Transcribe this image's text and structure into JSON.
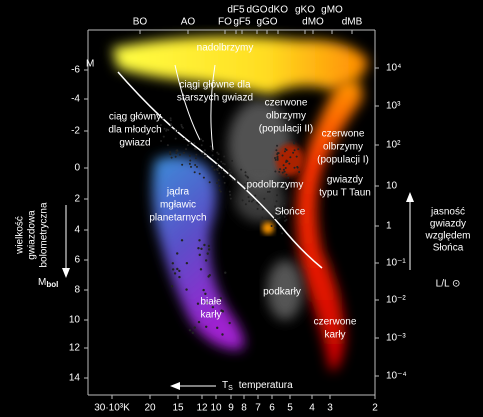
{
  "axes": {
    "left": {
      "unit": "M",
      "ticks": [
        "-6",
        "-4",
        "-2",
        "0",
        "2",
        "4",
        "6",
        "8",
        "10",
        "12",
        "14"
      ],
      "label": [
        "wielkość",
        "gwiazdowa",
        "bolometryczna"
      ],
      "symbol": "M",
      "subscript": "bol"
    },
    "right": {
      "ticks": [
        "10⁴",
        "10³",
        "10²",
        "10",
        "1",
        "10⁻¹",
        "10⁻²",
        "10⁻³",
        "10⁻⁴"
      ],
      "label": [
        "jasność",
        "gwiazdy",
        "względem",
        "Słońca"
      ],
      "symbol": "L/L ⊙"
    },
    "bottom": {
      "ticks": [
        "30·10³K",
        "20",
        "15",
        "12",
        "10",
        "9",
        "8",
        "7",
        "6",
        "5",
        "4",
        "3",
        "2"
      ],
      "symbol": "T",
      "subscript": "S",
      "label": "temperatura"
    },
    "top": {
      "ticks": [
        "BO",
        "AO",
        "FO",
        "dF5",
        "gF5",
        "dGO",
        "gGO",
        "dKO",
        "gKO",
        "dMO",
        "gMO",
        "dMB"
      ]
    }
  },
  "regions": [
    {
      "label": [
        "nadolbrzymy"
      ]
    },
    {
      "label": [
        "ciągi główne dla",
        "starszych gwiazd"
      ]
    },
    {
      "label": [
        "ciąg główny",
        "dla młodych",
        "gwiazd"
      ]
    },
    {
      "label": [
        "czerwone",
        "olbrzymy",
        "(populacji II)"
      ]
    },
    {
      "label": [
        "czerwone",
        "olbrzymy",
        "(populacji I)"
      ]
    },
    {
      "label": [
        "jądra",
        "mgławic",
        "planetarnych"
      ]
    },
    {
      "label": [
        "podolbrzymy"
      ]
    },
    {
      "label": [
        "gwiazdy",
        "typu T Taun"
      ]
    },
    {
      "label": [
        "Słońce"
      ]
    },
    {
      "label": [
        "podkarły"
      ]
    },
    {
      "label": [
        "białe",
        "karły"
      ]
    },
    {
      "label": [
        "czerwone",
        "karły"
      ]
    }
  ]
}
